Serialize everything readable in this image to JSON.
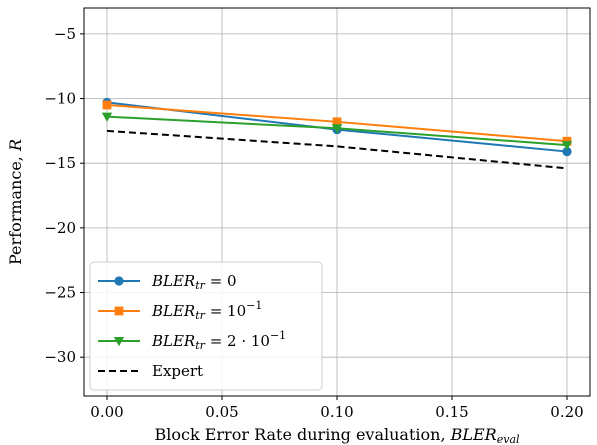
{
  "chart_data": {
    "type": "line",
    "xlabel": "Block Error Rate during evaluation, ",
    "xlabel_math": {
      "base": "BLER",
      "sub": "eval"
    },
    "ylabel": "Performance, ",
    "ylabel_math": "R",
    "xlim": [
      -0.01,
      0.21
    ],
    "ylim": [
      -33,
      -3
    ],
    "xticks": [
      0.0,
      0.05,
      0.1,
      0.15,
      0.2
    ],
    "xtick_labels": [
      "0.00",
      "0.05",
      "0.10",
      "0.15",
      "0.20"
    ],
    "yticks": [
      -30,
      -25,
      -20,
      -15,
      -10,
      -5
    ],
    "ytick_labels": [
      "−30",
      "−25",
      "−20",
      "−15",
      "−10",
      "−5"
    ],
    "grid": true,
    "legend_position": "lower-left",
    "x": [
      0.0,
      0.1,
      0.2
    ],
    "series": [
      {
        "name_base": "BLER",
        "name_sub": "tr",
        "name_rest": " = 0",
        "values": [
          -10.3,
          -12.4,
          -14.1
        ],
        "color": "#1f77b4",
        "marker": "circle",
        "dash": "solid"
      },
      {
        "name_base": "BLER",
        "name_sub": "tr",
        "name_rest": " = 10",
        "name_sup": "−1",
        "values": [
          -10.5,
          -11.8,
          -13.3
        ],
        "color": "#ff7f0e",
        "marker": "square",
        "dash": "solid"
      },
      {
        "name_base": "BLER",
        "name_sub": "tr",
        "name_rest": " = 2 · 10",
        "name_sup": "−1",
        "values": [
          -11.4,
          -12.3,
          -13.6
        ],
        "color": "#2ca02c",
        "marker": "triangle-down",
        "dash": "solid"
      },
      {
        "name": "Expert",
        "values": [
          -12.5,
          -13.7,
          -15.4
        ],
        "color": "#000000",
        "marker": "none",
        "dash": "dashed"
      }
    ]
  }
}
